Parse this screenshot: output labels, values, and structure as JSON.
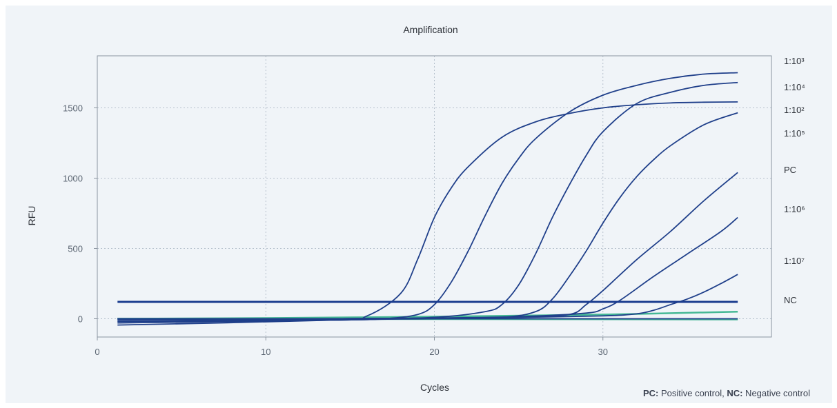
{
  "chart_data": {
    "type": "line",
    "title": "Amplification",
    "xlabel": "Cycles",
    "ylabel": "RFU",
    "xlim": [
      0,
      40
    ],
    "ylim": [
      -130,
      1870
    ],
    "xticks": [
      0,
      10,
      20,
      30
    ],
    "yticks": [
      0,
      500,
      1000,
      1500
    ],
    "grid": true,
    "threshold": 120,
    "colors": {
      "curve": "#1f3f8a",
      "threshold": "#1b3d8f",
      "control": "#45b895",
      "grid": "#b5c0cc",
      "frame": "#8a949f"
    },
    "series": [
      {
        "name": "1:10³",
        "x": [
          1.2,
          14,
          16,
          18,
          19,
          20,
          21,
          22,
          24,
          26,
          28,
          30,
          32,
          34,
          36,
          38
        ],
        "y": [
          -45,
          -10,
          20,
          180,
          420,
          720,
          930,
          1080,
          1290,
          1400,
          1460,
          1500,
          1522,
          1535,
          1540,
          1542
        ]
      },
      {
        "name": "1:10⁴",
        "x": [
          1.2,
          14,
          17,
          19,
          20,
          21,
          22,
          23,
          24,
          25,
          26,
          28,
          30,
          32,
          34,
          36,
          38
        ],
        "y": [
          -30,
          -10,
          0,
          30,
          100,
          260,
          480,
          730,
          960,
          1140,
          1280,
          1470,
          1590,
          1660,
          1710,
          1740,
          1750
        ]
      },
      {
        "name": "1:10²",
        "x": [
          1.2,
          14,
          20,
          23,
          24,
          25,
          26,
          27,
          28,
          29,
          30,
          32,
          34,
          36,
          38
        ],
        "y": [
          -20,
          -10,
          10,
          50,
          100,
          240,
          460,
          720,
          950,
          1160,
          1330,
          1530,
          1610,
          1660,
          1680
        ]
      },
      {
        "name": "1:10⁵",
        "x": [
          1.2,
          14,
          20,
          24,
          26,
          27,
          28,
          29,
          30,
          31,
          32,
          33,
          34,
          36,
          38
        ],
        "y": [
          -15,
          -5,
          0,
          10,
          50,
          140,
          300,
          480,
          680,
          860,
          1010,
          1130,
          1230,
          1380,
          1465
        ]
      },
      {
        "name": "PC",
        "x": [
          1.2,
          14,
          20,
          25,
          28,
          29,
          30,
          32,
          34,
          36,
          38
        ],
        "y": [
          0,
          0,
          5,
          10,
          30,
          100,
          200,
          420,
          620,
          840,
          1040
        ]
      },
      {
        "name": "1:10⁶",
        "x": [
          1.2,
          14,
          20,
          25,
          29,
          30,
          31,
          33,
          35,
          37,
          38
        ],
        "y": [
          -5,
          0,
          5,
          15,
          40,
          70,
          130,
          300,
          460,
          620,
          720
        ]
      },
      {
        "name": "1:10⁷",
        "x": [
          1.2,
          14,
          20,
          25,
          30,
          32,
          33,
          34,
          35,
          36,
          37,
          38
        ],
        "y": [
          0,
          0,
          5,
          10,
          20,
          35,
          60,
          100,
          140,
          190,
          250,
          315
        ]
      },
      {
        "name": "NC",
        "x": [
          1.2,
          38
        ],
        "y": [
          0,
          0
        ]
      }
    ],
    "controls": [
      {
        "x": [
          1.2,
          10,
          20,
          30,
          38
        ],
        "y": [
          0,
          5,
          15,
          30,
          50
        ]
      },
      {
        "x": [
          1.2,
          38
        ],
        "y": [
          0,
          -5
        ]
      }
    ],
    "series_labels": [
      "1:10³",
      "1:10⁴",
      "1:10²",
      "1:10⁵",
      "PC",
      "1:10⁶",
      "1:10⁷",
      "NC"
    ],
    "footnote": {
      "pc_key": "PC:",
      "pc_text": " Positive control, ",
      "nc_key": "NC:",
      "nc_text": " Negative control"
    }
  }
}
